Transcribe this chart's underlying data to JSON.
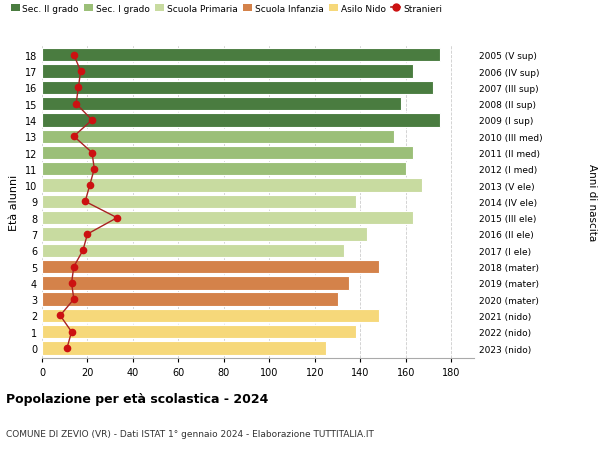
{
  "ages": [
    0,
    1,
    2,
    3,
    4,
    5,
    6,
    7,
    8,
    9,
    10,
    11,
    12,
    13,
    14,
    15,
    16,
    17,
    18
  ],
  "years": [
    "2023 (nido)",
    "2022 (nido)",
    "2021 (nido)",
    "2020 (mater)",
    "2019 (mater)",
    "2018 (mater)",
    "2017 (I ele)",
    "2016 (II ele)",
    "2015 (III ele)",
    "2014 (IV ele)",
    "2013 (V ele)",
    "2012 (I med)",
    "2011 (II med)",
    "2010 (III med)",
    "2009 (I sup)",
    "2008 (II sup)",
    "2007 (III sup)",
    "2006 (IV sup)",
    "2005 (V sup)"
  ],
  "bar_values": [
    125,
    138,
    148,
    130,
    135,
    148,
    133,
    143,
    163,
    138,
    167,
    160,
    163,
    155,
    175,
    158,
    172,
    163,
    175
  ],
  "stranieri": [
    11,
    13,
    8,
    14,
    13,
    14,
    18,
    20,
    33,
    19,
    21,
    23,
    22,
    14,
    22,
    15,
    16,
    17,
    14
  ],
  "bar_colors": [
    "#f6d87a",
    "#f6d87a",
    "#f6d87a",
    "#d4824a",
    "#d4824a",
    "#d4824a",
    "#c8dba0",
    "#c8dba0",
    "#c8dba0",
    "#c8dba0",
    "#c8dba0",
    "#9bbf78",
    "#9bbf78",
    "#9bbf78",
    "#4a7c40",
    "#4a7c40",
    "#4a7c40",
    "#4a7c40",
    "#4a7c40"
  ],
  "legend_labels": [
    "Sec. II grado",
    "Sec. I grado",
    "Scuola Primaria",
    "Scuola Infanzia",
    "Asilo Nido",
    "Stranieri"
  ],
  "legend_colors": [
    "#4a7c40",
    "#9bbf78",
    "#c8dba0",
    "#d4824a",
    "#f6d87a",
    "#cc1111"
  ],
  "stranieri_color": "#cc1111",
  "stranieri_line_color": "#aa2222",
  "ylabel": "Età alunni",
  "right_label": "Anni di nascita",
  "title": "Popolazione per età scolastica - 2024",
  "subtitle": "COMUNE DI ZEVIO (VR) - Dati ISTAT 1° gennaio 2024 - Elaborazione TUTTITALIA.IT",
  "xlim": [
    0,
    190
  ],
  "xticks": [
    0,
    20,
    40,
    60,
    80,
    100,
    120,
    140,
    160,
    180
  ],
  "grid_color": "#cccccc"
}
